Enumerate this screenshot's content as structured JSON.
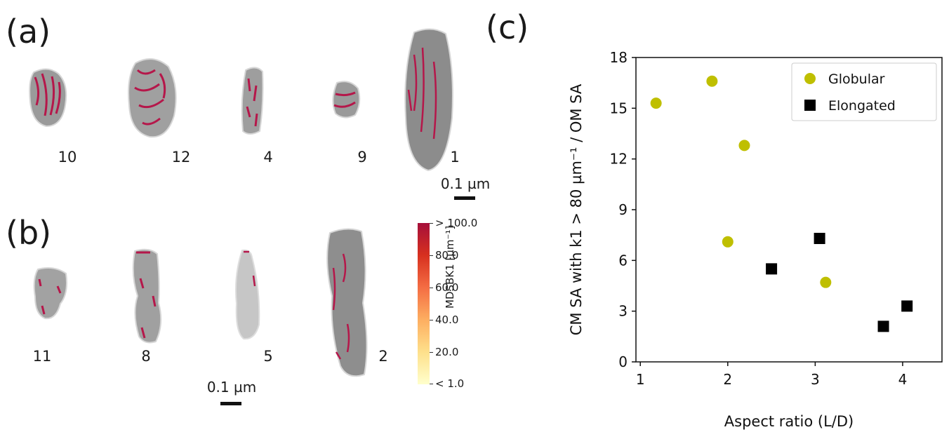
{
  "panels": {
    "a_label": "(a)",
    "b_label": "(b)",
    "c_label": "(c)"
  },
  "row_a": {
    "numbers": [
      "10",
      "12",
      "4",
      "9",
      "1"
    ],
    "scale_label": "0.1 µm"
  },
  "row_b": {
    "numbers": [
      "11",
      "8",
      "5",
      "2"
    ],
    "scale_label": "0.1 µm"
  },
  "colorbar": {
    "title": "MDSBK1 [µm⁻¹]",
    "ticks": [
      "> 100.0",
      "80.0",
      "60.0",
      "40.0",
      "20.0",
      "< 1.0"
    ]
  },
  "chart_data": {
    "type": "scatter",
    "xlabel": "Aspect ratio (L/D)",
    "ylabel": "CM SA with k1 > 80 µm⁻¹ / OM SA",
    "xlim": [
      0.95,
      4.45
    ],
    "ylim": [
      0,
      18
    ],
    "xticks": [
      "1",
      "2",
      "3",
      "4"
    ],
    "yticks": [
      "0",
      "3",
      "6",
      "9",
      "12",
      "15",
      "18"
    ],
    "legend_position": "top-right",
    "series": [
      {
        "name": "Globular",
        "marker": "circle",
        "color": "#bfbf00",
        "points": [
          {
            "x": 1.18,
            "y": 15.3
          },
          {
            "x": 1.82,
            "y": 16.6
          },
          {
            "x": 2.19,
            "y": 12.8
          },
          {
            "x": 2.0,
            "y": 7.1
          },
          {
            "x": 3.12,
            "y": 4.7
          }
        ]
      },
      {
        "name": "Elongated",
        "marker": "square",
        "color": "#000000",
        "points": [
          {
            "x": 2.5,
            "y": 5.5
          },
          {
            "x": 3.05,
            "y": 7.3
          },
          {
            "x": 3.78,
            "y": 2.1
          },
          {
            "x": 4.05,
            "y": 3.3
          }
        ]
      }
    ]
  }
}
